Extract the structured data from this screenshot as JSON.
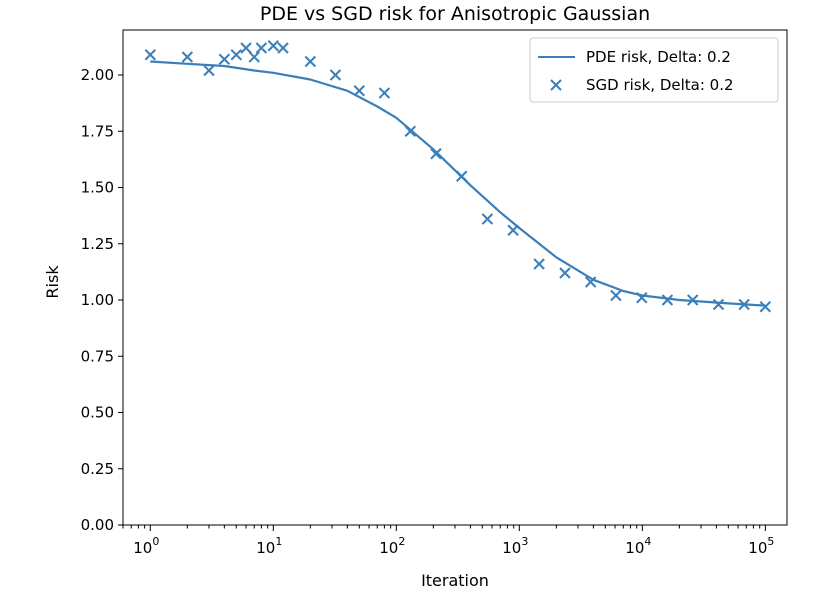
{
  "chart_data": {
    "type": "line",
    "title": "PDE vs SGD risk for Anisotropic Gaussian",
    "xlabel": "Iteration",
    "ylabel": "Risk",
    "xscale": "log",
    "xlim": [
      0.6,
      150000
    ],
    "ylim": [
      0,
      2.2
    ],
    "grid": false,
    "legend_position": "top-right",
    "color": "#3a7fba",
    "x_ticks": [
      {
        "value": 1,
        "base": "10",
        "exp": "0"
      },
      {
        "value": 10,
        "base": "10",
        "exp": "1"
      },
      {
        "value": 100,
        "base": "10",
        "exp": "2"
      },
      {
        "value": 1000,
        "base": "10",
        "exp": "3"
      },
      {
        "value": 10000,
        "base": "10",
        "exp": "4"
      },
      {
        "value": 100000,
        "base": "10",
        "exp": "5"
      }
    ],
    "y_ticks": [
      "0.00",
      "0.25",
      "0.50",
      "0.75",
      "1.00",
      "1.25",
      "1.50",
      "1.75",
      "2.00"
    ],
    "series": [
      {
        "name": "PDE risk, Delta: 0.2",
        "style": "line",
        "x": [
          1,
          2,
          4,
          7,
          10,
          20,
          40,
          70,
          100,
          200,
          400,
          700,
          1000,
          2000,
          4000,
          7000,
          10000,
          20000,
          50000,
          100000
        ],
        "y": [
          2.06,
          2.05,
          2.04,
          2.02,
          2.01,
          1.98,
          1.93,
          1.86,
          1.81,
          1.67,
          1.51,
          1.39,
          1.32,
          1.19,
          1.09,
          1.04,
          1.02,
          1.0,
          0.985,
          0.975
        ]
      },
      {
        "name": "SGD risk, Delta: 0.2",
        "style": "marker-x",
        "x": [
          1,
          2,
          3,
          4,
          5,
          6,
          7,
          8,
          10,
          12,
          20,
          32,
          50,
          80,
          130,
          210,
          340,
          550,
          890,
          1450,
          2350,
          3800,
          6100,
          9900,
          16000,
          25700,
          41600,
          67300,
          100000
        ],
        "y": [
          2.09,
          2.08,
          2.02,
          2.07,
          2.09,
          2.12,
          2.08,
          2.12,
          2.13,
          2.12,
          2.06,
          2.0,
          1.93,
          1.92,
          1.75,
          1.65,
          1.55,
          1.36,
          1.31,
          1.16,
          1.12,
          1.08,
          1.02,
          1.01,
          1.0,
          1.0,
          0.98,
          0.98,
          0.97
        ]
      }
    ]
  }
}
